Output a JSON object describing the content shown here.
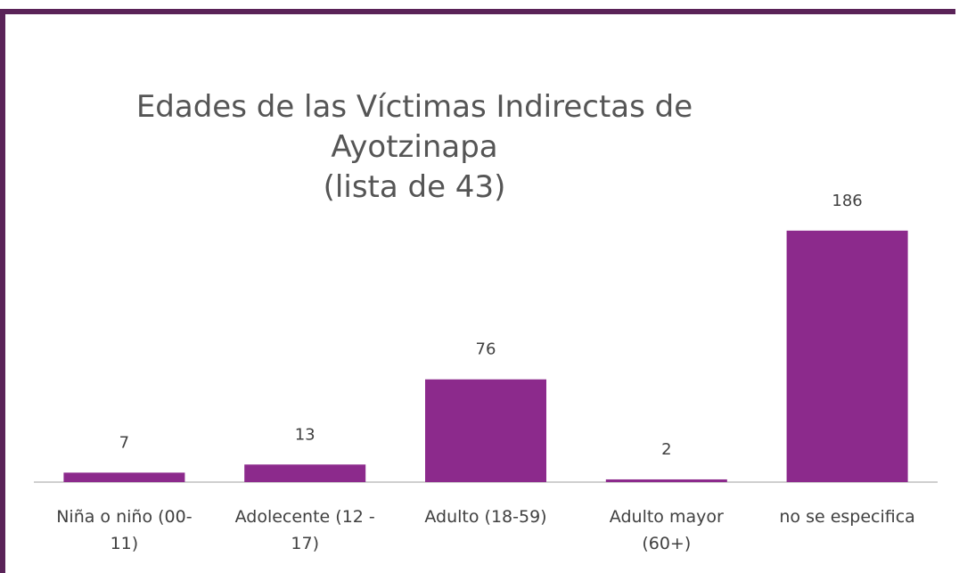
{
  "chart_data": {
    "type": "bar",
    "title": [
      "Edades de las Víctimas Indirectas de",
      "Ayotzinapa",
      "(lista de 43)"
    ],
    "categories": [
      [
        "Niña o niño (00-",
        "11)"
      ],
      [
        "Adolecente (12 -",
        "17)"
      ],
      [
        "Adulto (18-59)"
      ],
      [
        "Adulto mayor",
        "(60+)"
      ],
      [
        "no se especifica"
      ]
    ],
    "values": [
      7,
      13,
      76,
      2,
      186
    ],
    "data_labels": [
      "7",
      "13",
      "76",
      "2",
      "186"
    ],
    "ylim": [
      0,
      205
    ],
    "grid": false,
    "legend": "none",
    "bar_color": "#8c2a8c",
    "axis_color": "#bfbfbf"
  }
}
